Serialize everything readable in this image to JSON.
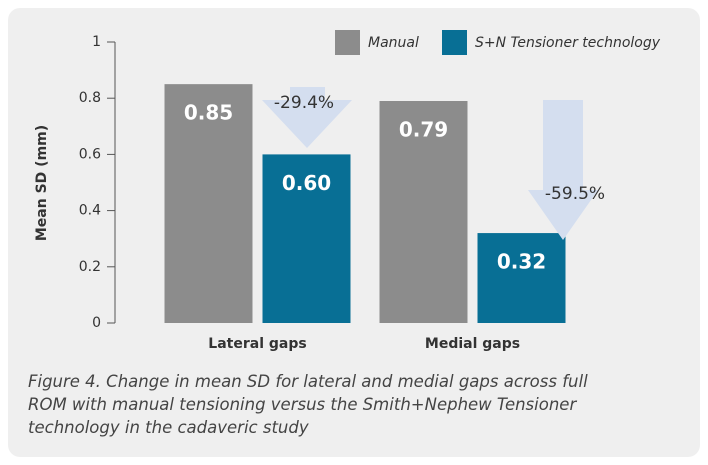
{
  "chart_data": {
    "type": "bar",
    "y_label": "Mean SD (mm)",
    "categories": [
      "Lateral gaps",
      "Medial gaps"
    ],
    "series": [
      {
        "name": "Manual",
        "color": "#8c8c8c",
        "values": [
          0.85,
          0.79
        ]
      },
      {
        "name": "S+N Tensioner technology",
        "color": "#086f95",
        "values": [
          0.6,
          0.32
        ]
      }
    ],
    "value_labels": [
      [
        "0.85",
        "0.79"
      ],
      [
        "0.60",
        "0.32"
      ]
    ],
    "annotations": [
      "-29.4%",
      "-59.5%"
    ],
    "ylim": [
      0,
      1
    ],
    "yticks": [
      0,
      0.2,
      0.4,
      0.6,
      0.8,
      1
    ],
    "caption_lines": [
      "Figure 4. Change in mean SD for lateral and medial gaps across full",
      "ROM with manual tensioning versus the Smith+Nephew Tensioner",
      "technology in the cadaveric study"
    ]
  }
}
